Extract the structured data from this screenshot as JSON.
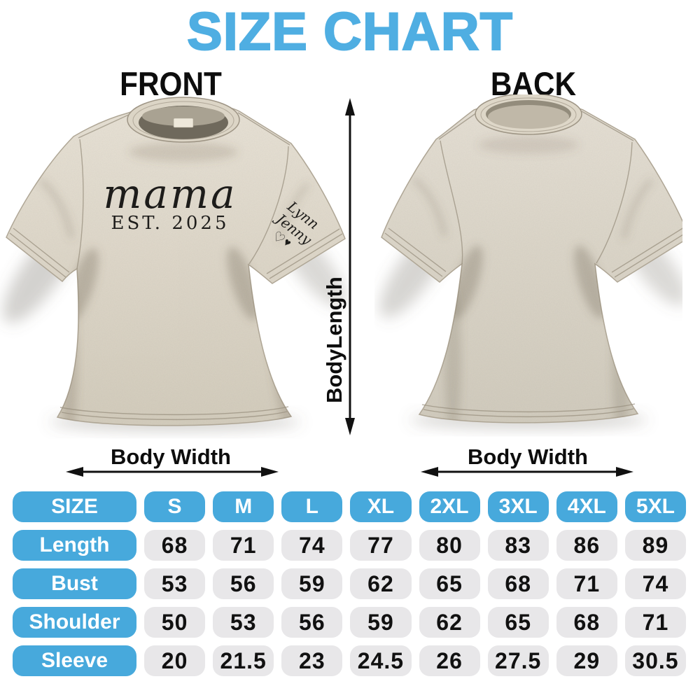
{
  "title": "SIZE CHART",
  "front_label": "FRONT",
  "back_label": "BACK",
  "shirt_front": {
    "graphic_main": "mama",
    "graphic_sub": "EST. 2025",
    "sleeve_name_1": "Lynn",
    "sleeve_name_2": "Jenny",
    "heart_outline": "♡",
    "heart_filled": "♥"
  },
  "measurements": {
    "body_length_label": "BodyLength",
    "body_width_front_label": "Body Width",
    "body_width_back_label": "Body Width"
  },
  "chart_data": {
    "type": "table",
    "title": "SIZE CHART",
    "columns": [
      "SIZE",
      "S",
      "M",
      "L",
      "XL",
      "2XL",
      "3XL",
      "4XL",
      "5XL"
    ],
    "rows": [
      {
        "label": "Length",
        "values": [
          68,
          71,
          74,
          77,
          80,
          83,
          86,
          89
        ]
      },
      {
        "label": "Bust",
        "values": [
          53,
          56,
          59,
          62,
          65,
          68,
          71,
          74
        ]
      },
      {
        "label": "Shoulder",
        "values": [
          50,
          53,
          56,
          59,
          62,
          65,
          68,
          71
        ]
      },
      {
        "label": "Sleeve",
        "values": [
          20,
          21.5,
          23,
          24.5,
          26,
          27.5,
          29,
          30.5
        ]
      }
    ]
  },
  "colors": {
    "title_blue": "#4FAEE2",
    "table_blue": "#47A9DC",
    "cell_gray": "#E8E7E9",
    "shirt_beige": "#E0D9CB",
    "text_black": "#0d0d0d"
  }
}
